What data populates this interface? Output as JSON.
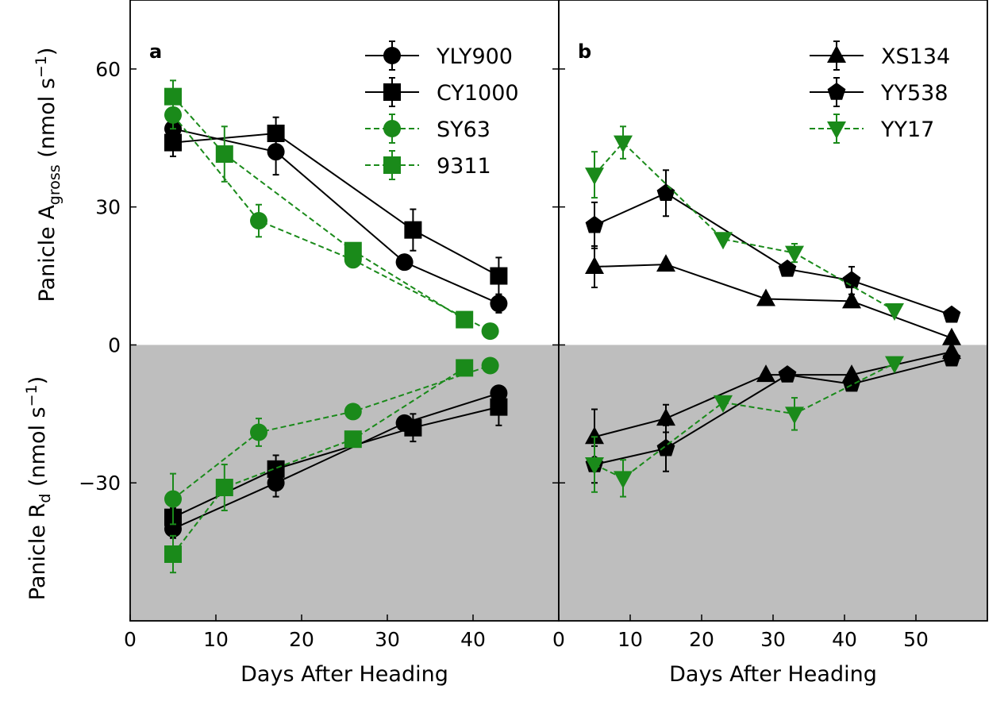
{
  "figure": {
    "xlabel": "Days After Heading",
    "ylabel_top": {
      "main": "Panicle A",
      "sub": "gross",
      "unit": " (nmol s",
      "exp": "−1",
      "close": ")"
    },
    "ylabel_bottom": {
      "main": "Panicle R",
      "sub": "d",
      "unit": " (nmol s",
      "exp": "−1",
      "close": ")"
    },
    "colors": {
      "black": "#000000",
      "green": "#1a8a1a",
      "shade": "#bebebe"
    }
  },
  "chart_data": [
    {
      "type": "line",
      "panel_label": "a",
      "xlabel": "Days After Heading",
      "xlim": [
        0,
        50
      ],
      "xticks": [
        0,
        10,
        20,
        30,
        40
      ],
      "ylim": [
        -60,
        75
      ],
      "yticks": [
        -30,
        0,
        30,
        60
      ],
      "shaded_region_below_zero": true,
      "legend": {
        "placement": "top-right"
      },
      "series": [
        {
          "name": "YLY900",
          "marker": "circle",
          "color": "black",
          "dashed": false,
          "gross": [
            {
              "x": 5,
              "y": 47,
              "err": 3
            },
            {
              "x": 17,
              "y": 42,
              "err": 5
            },
            {
              "x": 32,
              "y": 18,
              "err": 0
            },
            {
              "x": 43,
              "y": 9,
              "err": 2
            }
          ],
          "rd": [
            {
              "x": 5,
              "y": -40,
              "err": 2
            },
            {
              "x": 17,
              "y": -30,
              "err": 3
            },
            {
              "x": 32,
              "y": -17,
              "err": 0
            },
            {
              "x": 43,
              "y": -10.5,
              "err": 0
            }
          ]
        },
        {
          "name": "CY1000",
          "marker": "square",
          "color": "black",
          "dashed": false,
          "gross": [
            {
              "x": 5,
              "y": 44,
              "err": 3
            },
            {
              "x": 17,
              "y": 46,
              "err": 3.5
            },
            {
              "x": 33,
              "y": 25,
              "err": 4.5
            },
            {
              "x": 43,
              "y": 15,
              "err": 4
            }
          ],
          "rd": [
            {
              "x": 5,
              "y": -37.5,
              "err": 2
            },
            {
              "x": 17,
              "y": -27,
              "err": 3
            },
            {
              "x": 33,
              "y": -18,
              "err": 3
            },
            {
              "x": 43,
              "y": -13.5,
              "err": 4
            }
          ]
        },
        {
          "name": "SY63",
          "marker": "circle",
          "color": "green",
          "dashed": true,
          "gross": [
            {
              "x": 5,
              "y": 50,
              "err": 3
            },
            {
              "x": 15,
              "y": 27,
              "err": 3.5
            },
            {
              "x": 26,
              "y": 18.5,
              "err": 0
            },
            {
              "x": 42,
              "y": 3,
              "err": 0
            }
          ],
          "rd": [
            {
              "x": 5,
              "y": -33.5,
              "err": 5.5
            },
            {
              "x": 15,
              "y": -19,
              "err": 3
            },
            {
              "x": 26,
              "y": -14.5,
              "err": 0
            },
            {
              "x": 42,
              "y": -4.5,
              "err": 0
            }
          ]
        },
        {
          "name": "9311",
          "marker": "square",
          "color": "green",
          "dashed": true,
          "gross": [
            {
              "x": 5,
              "y": 54,
              "err": 3.5
            },
            {
              "x": 11,
              "y": 41.5,
              "err": 6
            },
            {
              "x": 26,
              "y": 20.5,
              "err": 0
            },
            {
              "x": 39,
              "y": 5.5,
              "err": 0
            }
          ],
          "rd": [
            {
              "x": 5,
              "y": -45.5,
              "err": 4
            },
            {
              "x": 11,
              "y": -31,
              "err": 5
            },
            {
              "x": 26,
              "y": -20.5,
              "err": 0
            },
            {
              "x": 39,
              "y": -5,
              "err": 0
            }
          ]
        }
      ]
    },
    {
      "type": "line",
      "panel_label": "b",
      "xlabel": "Days After Heading",
      "xlim": [
        0,
        60
      ],
      "xticks": [
        0,
        10,
        20,
        30,
        40,
        50
      ],
      "ylim": [
        -60,
        75
      ],
      "yticks": [
        -30,
        0,
        30,
        60
      ],
      "shaded_region_below_zero": true,
      "legend": {
        "placement": "top-right"
      },
      "series": [
        {
          "name": "XS134",
          "marker": "triangle-up",
          "color": "black",
          "dashed": false,
          "gross": [
            {
              "x": 5,
              "y": 17,
              "err": 4.5
            },
            {
              "x": 15,
              "y": 17.5,
              "err": 0
            },
            {
              "x": 29,
              "y": 10,
              "err": 0
            },
            {
              "x": 41,
              "y": 9.5,
              "err": 0
            },
            {
              "x": 55,
              "y": 1.5,
              "err": 0
            }
          ],
          "rd": [
            {
              "x": 5,
              "y": -20,
              "err": 6
            },
            {
              "x": 15,
              "y": -16,
              "err": 3
            },
            {
              "x": 29,
              "y": -6.5,
              "err": 0
            },
            {
              "x": 41,
              "y": -6.5,
              "err": 0
            },
            {
              "x": 55,
              "y": -1.5,
              "err": 0
            }
          ]
        },
        {
          "name": "YY538",
          "marker": "pentagon",
          "color": "black",
          "dashed": false,
          "gross": [
            {
              "x": 5,
              "y": 26,
              "err": 5
            },
            {
              "x": 15,
              "y": 33,
              "err": 5
            },
            {
              "x": 32,
              "y": 16.5,
              "err": 0
            },
            {
              "x": 41,
              "y": 14,
              "err": 3
            },
            {
              "x": 55,
              "y": 6.5,
              "err": 0
            }
          ],
          "rd": [
            {
              "x": 5,
              "y": -26,
              "err": 4
            },
            {
              "x": 15,
              "y": -22.5,
              "err": 5
            },
            {
              "x": 32,
              "y": -6.5,
              "err": 0
            },
            {
              "x": 41,
              "y": -8.5,
              "err": 0
            },
            {
              "x": 55,
              "y": -3,
              "err": 0
            }
          ]
        },
        {
          "name": "YY17",
          "marker": "triangle-down",
          "color": "green",
          "dashed": true,
          "gross": [
            {
              "x": 5,
              "y": 37,
              "err": 5
            },
            {
              "x": 9,
              "y": 44,
              "err": 3.5
            },
            {
              "x": 23,
              "y": 23,
              "err": 0
            },
            {
              "x": 33,
              "y": 20,
              "err": 2
            },
            {
              "x": 47,
              "y": 7.5,
              "err": 0
            }
          ],
          "rd": [
            {
              "x": 5,
              "y": -26,
              "err": 6
            },
            {
              "x": 9,
              "y": -29,
              "err": 4
            },
            {
              "x": 23,
              "y": -12.5,
              "err": 0
            },
            {
              "x": 33,
              "y": -15,
              "err": 3.5
            },
            {
              "x": 47,
              "y": -4,
              "err": 0
            }
          ]
        }
      ]
    }
  ]
}
